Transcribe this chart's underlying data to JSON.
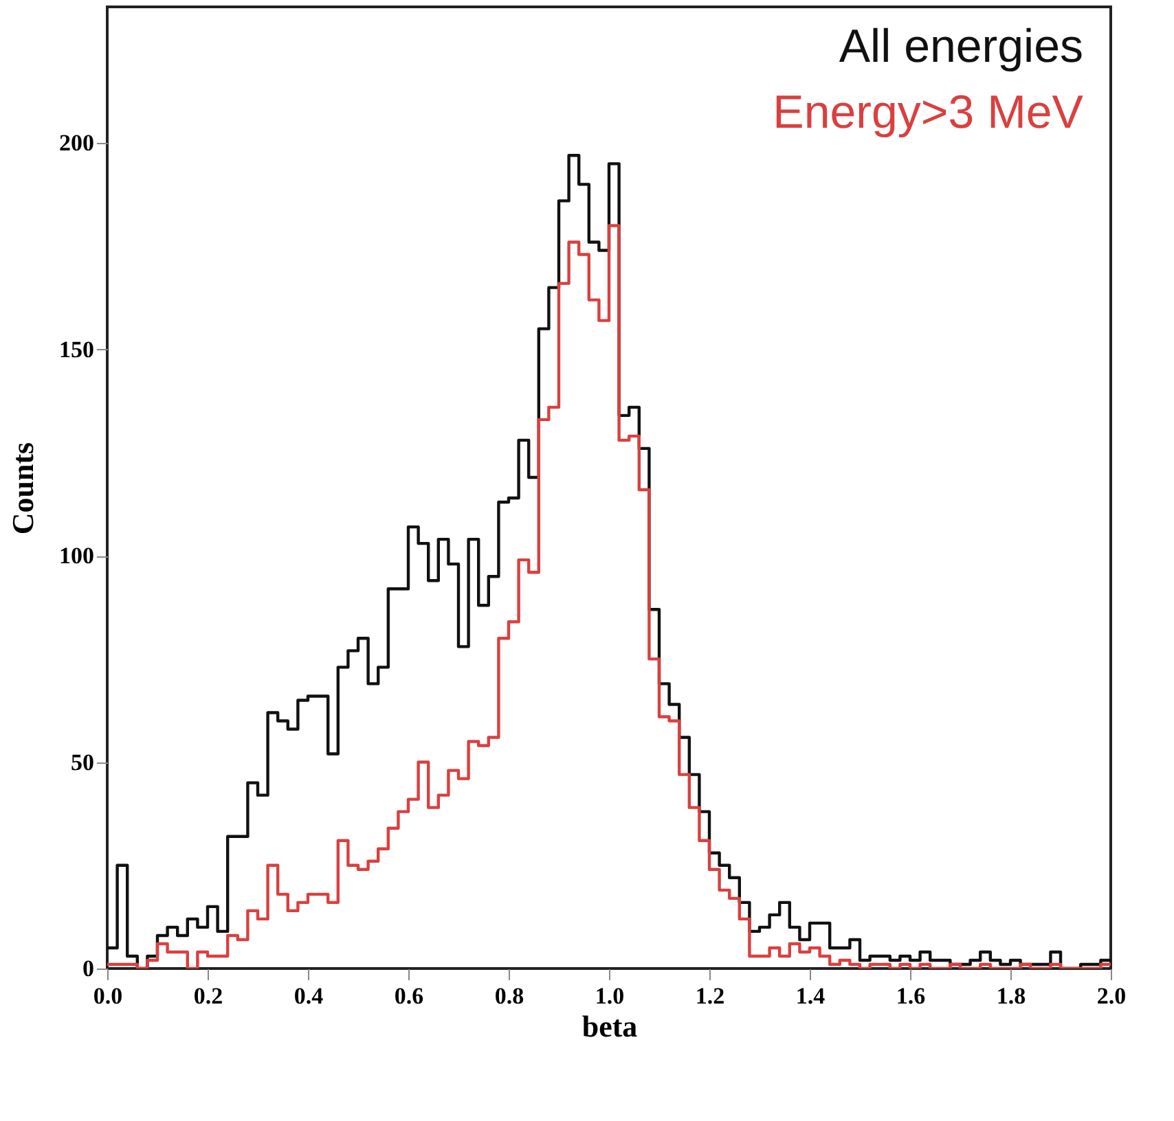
{
  "chart_data": {
    "type": "histogram",
    "xlabel": "beta",
    "ylabel": "Counts",
    "xlim": [
      0,
      2
    ],
    "ylim": [
      0,
      233
    ],
    "xticks": [
      {
        "value": 0,
        "label": "0.0"
      },
      {
        "value": 0.2,
        "label": "0.2"
      },
      {
        "value": 0.4,
        "label": "0.4"
      },
      {
        "value": 0.6,
        "label": "0.6"
      },
      {
        "value": 0.8,
        "label": "0.8"
      },
      {
        "value": 1,
        "label": "1.0"
      },
      {
        "value": 1.2,
        "label": "1.2"
      },
      {
        "value": 1.4,
        "label": "1.4"
      },
      {
        "value": 1.6,
        "label": "1.6"
      },
      {
        "value": 1.8,
        "label": "1.8"
      },
      {
        "value": 2,
        "label": "2.0"
      }
    ],
    "yticks": [
      0,
      50,
      100,
      150,
      200
    ],
    "grid": false,
    "legend": "top right",
    "bins": [
      0,
      0.02,
      0.04,
      0.06,
      0.08,
      0.1,
      0.12,
      0.14,
      0.16,
      0.18,
      0.2,
      0.22,
      0.24,
      0.26,
      0.28,
      0.3,
      0.32,
      0.34,
      0.36,
      0.38,
      0.4,
      0.42,
      0.44,
      0.46,
      0.48,
      0.5,
      0.52,
      0.54,
      0.56,
      0.58,
      0.6,
      0.62,
      0.64,
      0.66,
      0.68,
      0.7,
      0.72,
      0.74,
      0.76,
      0.78,
      0.8,
      0.82,
      0.84,
      0.86,
      0.88,
      0.9,
      0.92,
      0.94,
      0.96,
      0.98,
      1,
      1.02,
      1.04,
      1.06,
      1.08,
      1.1,
      1.12,
      1.14,
      1.16,
      1.18,
      1.2,
      1.22,
      1.24,
      1.26,
      1.28,
      1.3,
      1.32,
      1.34,
      1.36,
      1.38,
      1.4,
      1.42,
      1.44,
      1.46,
      1.48,
      1.5,
      1.52,
      1.54,
      1.56,
      1.58,
      1.6,
      1.62,
      1.64,
      1.66,
      1.68,
      1.7,
      1.72,
      1.74,
      1.76,
      1.78,
      1.8,
      1.82,
      1.84,
      1.86,
      1.88,
      1.9,
      1.92,
      1.94,
      1.96,
      1.98,
      2
    ],
    "series": [
      {
        "name": "All energies",
        "color": "#111111",
        "values": [
          5,
          25,
          3,
          0,
          3,
          8,
          10,
          8,
          12,
          10,
          15,
          9,
          32,
          32,
          45,
          42,
          62,
          60,
          58,
          65,
          66,
          66,
          52,
          73,
          77,
          80,
          69,
          73,
          92,
          92,
          107,
          103,
          94,
          104,
          98,
          78,
          104,
          88,
          95,
          113,
          114,
          128,
          119,
          155,
          165,
          186,
          197,
          190,
          176,
          174,
          195,
          134,
          136,
          126,
          87,
          69,
          64,
          56,
          47,
          38,
          28,
          25,
          22,
          16,
          9,
          10,
          13,
          16,
          10,
          7,
          11,
          11,
          5,
          5,
          7,
          2,
          3,
          3,
          2,
          3,
          2,
          4,
          2,
          2,
          1,
          1,
          2,
          4,
          2,
          1,
          2,
          1,
          1,
          1,
          4,
          0,
          0,
          1,
          1,
          2
        ]
      },
      {
        "name": "Energy>3 MeV",
        "color": "#d94040",
        "values": [
          1,
          1,
          1,
          0,
          2,
          6,
          4,
          4,
          0,
          4,
          3,
          3,
          8,
          7,
          14,
          12,
          25,
          18,
          14,
          16,
          18,
          18,
          16,
          31,
          25,
          24,
          26,
          29,
          34,
          38,
          41,
          50,
          39,
          42,
          48,
          46,
          55,
          54,
          56,
          80,
          84,
          99,
          96,
          133,
          136,
          166,
          176,
          173,
          162,
          157,
          180,
          128,
          129,
          116,
          75,
          61,
          60,
          47,
          39,
          31,
          24,
          19,
          17,
          12,
          3,
          3,
          5,
          3,
          6,
          4,
          5,
          3,
          1,
          2,
          1,
          0,
          1,
          1,
          0,
          1,
          0,
          1,
          0,
          0,
          1,
          0,
          0,
          1,
          0,
          0,
          0,
          1,
          0,
          0,
          1,
          0,
          0,
          0,
          0,
          1
        ]
      }
    ]
  }
}
